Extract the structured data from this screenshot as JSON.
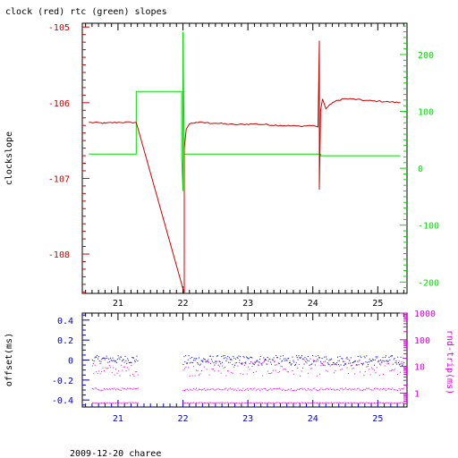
{
  "page": {
    "title": "clock (red) rtc (green) slopes",
    "footer": "2009-12-20 charee"
  },
  "colors": {
    "clock": "#cc0000",
    "rtc": "#00dd00",
    "offset": "#0000cc",
    "rtt": "#dd00dd",
    "frame": "#000000"
  },
  "chart_data": [
    {
      "type": "line",
      "title": "clock (red) rtc (green) slopes",
      "ylabel": "clockslope",
      "xlim": [
        20.45,
        25.45
      ],
      "ylim": [
        -108.52,
        -104.95
      ],
      "y2lim": [
        -220,
        255
      ],
      "x_ticks": [
        21,
        22,
        23,
        24,
        25
      ],
      "y_ticks": [
        -105,
        -106,
        -107,
        -108
      ],
      "y2_ticks": [
        200,
        100,
        0,
        -100,
        -200
      ],
      "grid": false,
      "series": [
        {
          "name": "clock",
          "axis": "left",
          "x": [
            20.55,
            20.8,
            21.0,
            21.2,
            21.28,
            22.02,
            22.02,
            22.05,
            22.1,
            22.2,
            22.5,
            22.8,
            23.1,
            23.5,
            23.8,
            24.0,
            24.08,
            24.1,
            24.1,
            24.12,
            24.15,
            24.2,
            24.3,
            24.45,
            24.6,
            24.8,
            25.0,
            25.2,
            25.35
          ],
          "y": [
            -106.26,
            -106.27,
            -106.26,
            -106.26,
            -106.26,
            -108.52,
            -106.6,
            -106.35,
            -106.28,
            -106.26,
            -106.27,
            -106.29,
            -106.28,
            -106.3,
            -106.31,
            -106.3,
            -106.32,
            -105.18,
            -107.15,
            -106.1,
            -105.95,
            -106.08,
            -106.0,
            -105.95,
            -105.95,
            -105.97,
            -105.98,
            -105.99,
            -106.0
          ]
        },
        {
          "name": "rtc",
          "axis": "right",
          "x": [
            20.55,
            21.28,
            21.28,
            21.98,
            21.98,
            22.0,
            22.0,
            22.02,
            22.02,
            24.1,
            24.1,
            24.12,
            24.12,
            25.35
          ],
          "y": [
            25,
            25,
            135,
            135,
            20,
            -40,
            240,
            30,
            25,
            25,
            20,
            25,
            22,
            22
          ]
        }
      ]
    },
    {
      "type": "scatter",
      "ylabel": "offset(ms)",
      "y2label": "rnd-trip(ms)",
      "xlim": [
        20.45,
        25.45
      ],
      "ylim": [
        -0.47,
        0.47
      ],
      "y2lim": [
        0.3,
        1000
      ],
      "y2scale": "log",
      "x_ticks": [
        21,
        22,
        23,
        24,
        25
      ],
      "y_ticks": [
        0.4,
        0.2,
        0,
        -0.2,
        -0.4
      ],
      "y2_ticks": [
        1000,
        100,
        10,
        1
      ],
      "grid": false,
      "series": [
        {
          "name": "offset",
          "axis": "left",
          "bands": [
            [
              20.6,
              21.3,
              0.01,
              0.04
            ],
            [
              22.0,
              25.4,
              0.0,
              0.05
            ]
          ]
        },
        {
          "name": "rtt",
          "axis": "right",
          "bands": [
            [
              20.6,
              21.3,
              4.5,
              12
            ],
            [
              22.0,
              25.4,
              4.5,
              18
            ],
            [
              20.6,
              21.3,
              1.3,
              1.6
            ],
            [
              22.0,
              25.4,
              1.3,
              1.6
            ],
            [
              20.6,
              21.3,
              0.43,
              0.46
            ],
            [
              22.0,
              25.4,
              0.43,
              0.46
            ]
          ]
        }
      ]
    }
  ]
}
